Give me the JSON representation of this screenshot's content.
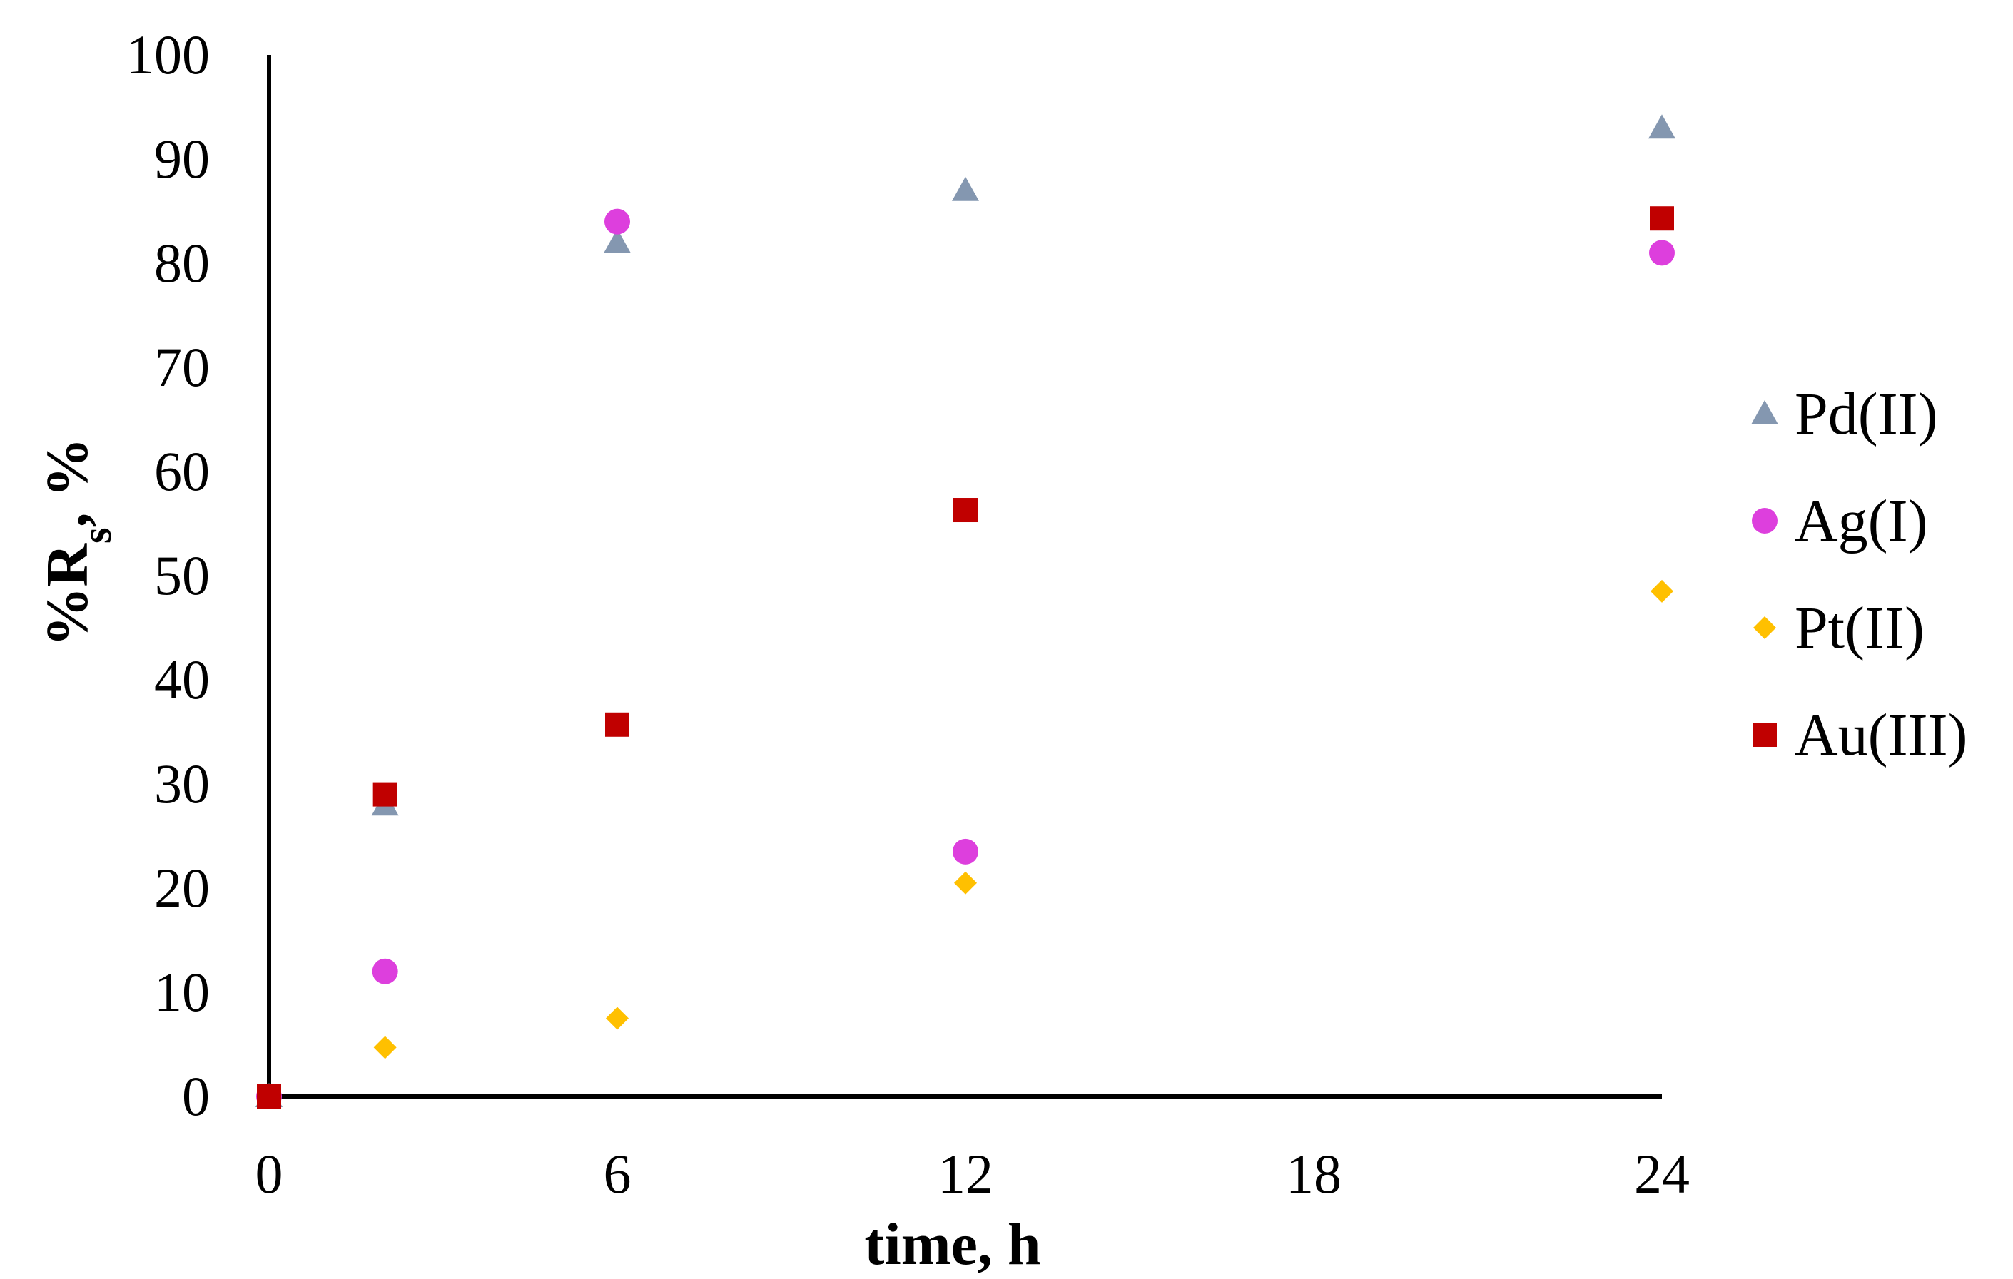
{
  "chart_data": {
    "type": "scatter",
    "xlabel": "time, h",
    "ylabel": {
      "main": "%R",
      "sub": "s",
      "suffix": ", %"
    },
    "xlim": [
      0,
      24
    ],
    "ylim": [
      0,
      100
    ],
    "xticks": [
      0,
      6,
      12,
      18,
      24
    ],
    "yticks": [
      0,
      10,
      20,
      30,
      40,
      50,
      60,
      70,
      80,
      90,
      100
    ],
    "grid": false,
    "legend": "right",
    "series": [
      {
        "name": "Pd(II)",
        "marker": "triangle",
        "color": "#8497b0",
        "x": [
          0,
          2,
          6,
          12,
          24
        ],
        "y": [
          0,
          28,
          82,
          87,
          93
        ]
      },
      {
        "name": "Ag(I)",
        "marker": "circle",
        "color": "#dd3fdd",
        "x": [
          0,
          2,
          6,
          12,
          24
        ],
        "y": [
          0,
          12,
          84,
          23.5,
          81
        ]
      },
      {
        "name": "Pt(II)",
        "marker": "diamond",
        "color": "#ffc000",
        "x": [
          0,
          2,
          6,
          12,
          24
        ],
        "y": [
          0,
          4.7,
          7.5,
          20.5,
          48.5
        ]
      },
      {
        "name": "Au(III)",
        "marker": "square",
        "color": "#c00000",
        "x": [
          0,
          2,
          6,
          12,
          24
        ],
        "y": [
          0,
          29,
          35.7,
          56.3,
          84.3
        ]
      }
    ]
  }
}
